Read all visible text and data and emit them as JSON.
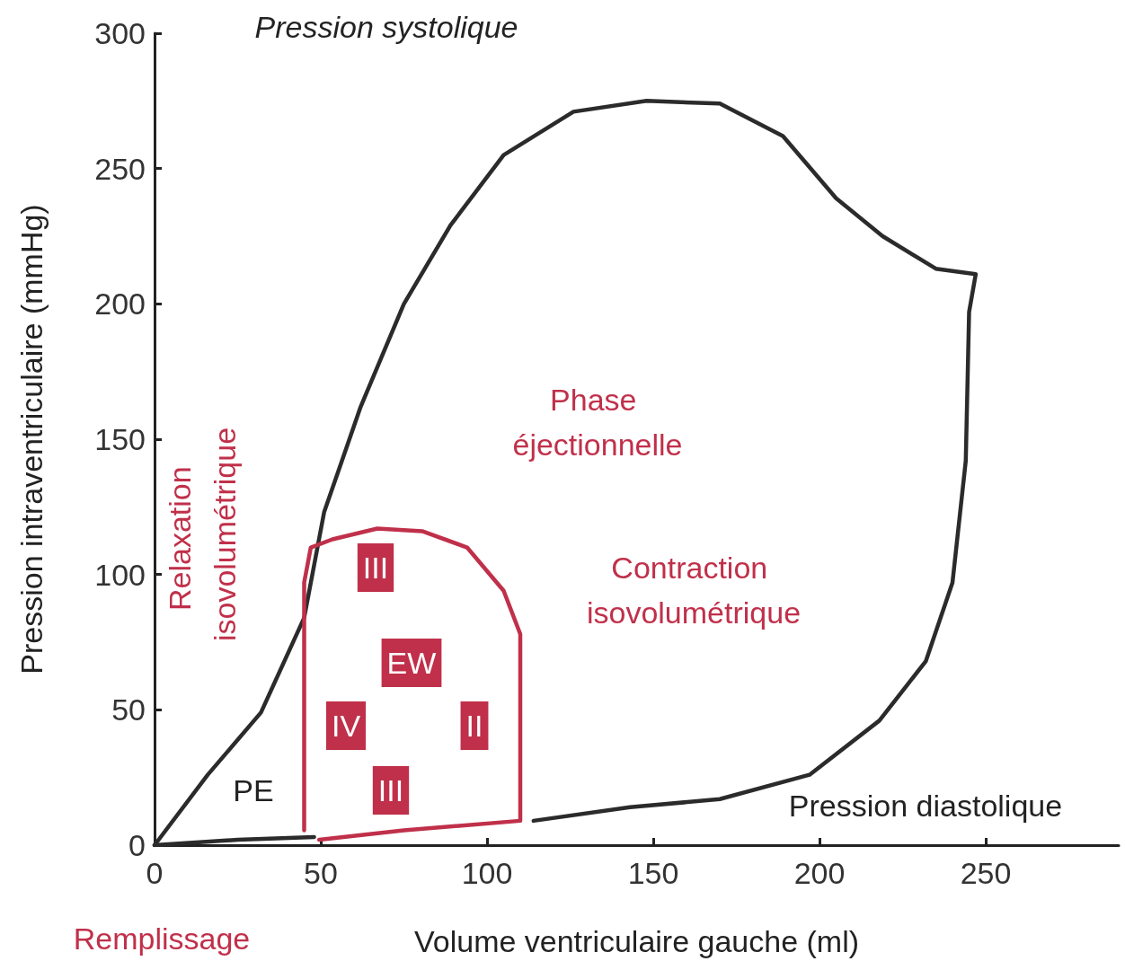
{
  "chart_data": {
    "type": "line",
    "xlabel": "Volume ventriculaire gauche (ml)",
    "ylabel": "Pression intraventriculaire (mmHg)",
    "xlim": [
      0,
      290
    ],
    "ylim": [
      0,
      300
    ],
    "xticks": [
      0,
      50,
      100,
      150,
      200,
      250
    ],
    "yticks": [
      0,
      50,
      100,
      150,
      200,
      250,
      300
    ],
    "grid": false,
    "marker": "none",
    "line_style": "solid",
    "series": [
      {
        "color": "#2b2b2b",
        "x": [
          0,
          16,
          32,
          45,
          51,
          62,
          75,
          89,
          105,
          126,
          148,
          170,
          189,
          205,
          219,
          235,
          247,
          245,
          244,
          240,
          232,
          218,
          197,
          170,
          143,
          114
        ],
        "values": [
          0,
          26,
          49,
          84,
          123,
          162,
          200,
          229,
          255,
          271,
          275,
          274,
          262,
          239,
          225,
          213,
          211,
          197,
          142,
          97,
          68,
          46,
          26,
          17,
          14,
          9
        ]
      },
      {
        "color": "#2b2b2b",
        "x": [
          0,
          25,
          48
        ],
        "values": [
          0,
          2,
          3
        ]
      },
      {
        "color": "#c0304a",
        "x": [
          49.5,
          75,
          110,
          110,
          110,
          105,
          94,
          80.5,
          67,
          53.5,
          47,
          45,
          45,
          45
        ],
        "values": [
          2,
          5.5,
          9,
          45,
          78,
          94,
          110,
          116,
          117,
          113,
          110,
          97,
          81,
          5.5
        ]
      }
    ],
    "annotations": [
      "Pression systolique",
      "Pression diastolique",
      "Phase éjectionnelle",
      "Contraction isovolumétrique",
      "Relaxation isovolumétrique",
      "Remplissage",
      "III",
      "EW",
      "IV",
      "II",
      "III",
      "PE"
    ]
  }
}
